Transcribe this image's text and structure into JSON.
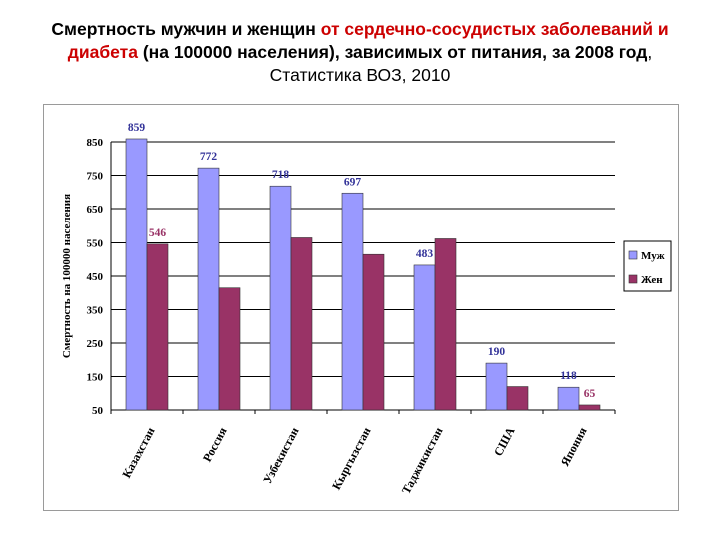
{
  "title": {
    "part1": "Смертность мужчин и женщин ",
    "part2": "от сердечно-сосудистых заболеваний и диабета",
    "part3": " (на 100000 населения), зависимых от питания, за 2008 год",
    "part4": ", Статистика ВОЗ, 2010"
  },
  "colors": {
    "men": "#9999ff",
    "women": "#993366",
    "men_label": "#333399",
    "women_label": "#993366",
    "title_red": "#cc0000"
  },
  "chart_data": {
    "type": "bar",
    "ylabel": "Смертность на 100000 населения",
    "ylim": [
      50,
      850
    ],
    "yticks": [
      50,
      150,
      250,
      350,
      450,
      550,
      650,
      750,
      850
    ],
    "grid": true,
    "legend_position": "right",
    "categories": [
      "Казахстан",
      "Россия",
      "Узбекистан",
      "Кыргызстан",
      "Таджикистан",
      "США",
      "Япония"
    ],
    "series": [
      {
        "name": "Муж",
        "values": [
          859,
          772,
          718,
          697,
          483,
          190,
          118
        ],
        "labels": [
          "859",
          "772",
          "718",
          "697",
          "483",
          "190",
          "118"
        ]
      },
      {
        "name": "Жен",
        "values": [
          546,
          415,
          565,
          515,
          562,
          120,
          65
        ],
        "labels": [
          "546",
          "",
          "",
          "",
          "",
          "",
          "65"
        ]
      }
    ]
  }
}
